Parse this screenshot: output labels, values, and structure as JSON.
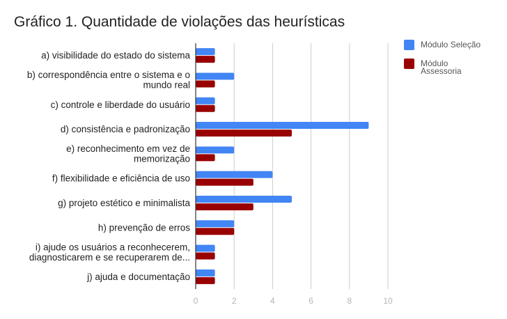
{
  "chart_data": {
    "type": "bar",
    "orientation": "horizontal",
    "title": "Gráfico 1. Quantidade de violações das heurísticas",
    "xlabel": "",
    "ylabel": "",
    "xlim": [
      0,
      10
    ],
    "xticks": [
      "0",
      "2",
      "4",
      "6",
      "8",
      "10"
    ],
    "grid": true,
    "legend_position": "top-right",
    "categories": [
      [
        "a) visibilidade do estado do sistema"
      ],
      [
        "b) correspondência entre o sistema e o",
        "mundo real"
      ],
      [
        "c) controle e liberdade do usuário"
      ],
      [
        "d) consistência e padronização"
      ],
      [
        "e) reconhecimento em vez de",
        "memorização"
      ],
      [
        "f)  flexibilidade e eficiência de uso"
      ],
      [
        "g) projeto estético e minimalista"
      ],
      [
        "h) prevenção de erros"
      ],
      [
        "i) ajude os usuários a reconhecerem,",
        "diagnosticarem e se recuperarem de..."
      ],
      [
        "j) ajuda e documentação"
      ]
    ],
    "series": [
      {
        "name": "Módulo Seleção",
        "legend_lines": [
          "Módulo Seleção"
        ],
        "color": "#4285f4",
        "values": [
          1,
          2,
          1,
          9,
          2,
          4,
          5,
          2,
          1,
          1
        ]
      },
      {
        "name": "Módulo Assessoria",
        "legend_lines": [
          "Módulo",
          "Assessoria"
        ],
        "color": "#990000",
        "values": [
          1,
          1,
          1,
          5,
          1,
          3,
          3,
          2,
          1,
          1
        ]
      }
    ]
  }
}
